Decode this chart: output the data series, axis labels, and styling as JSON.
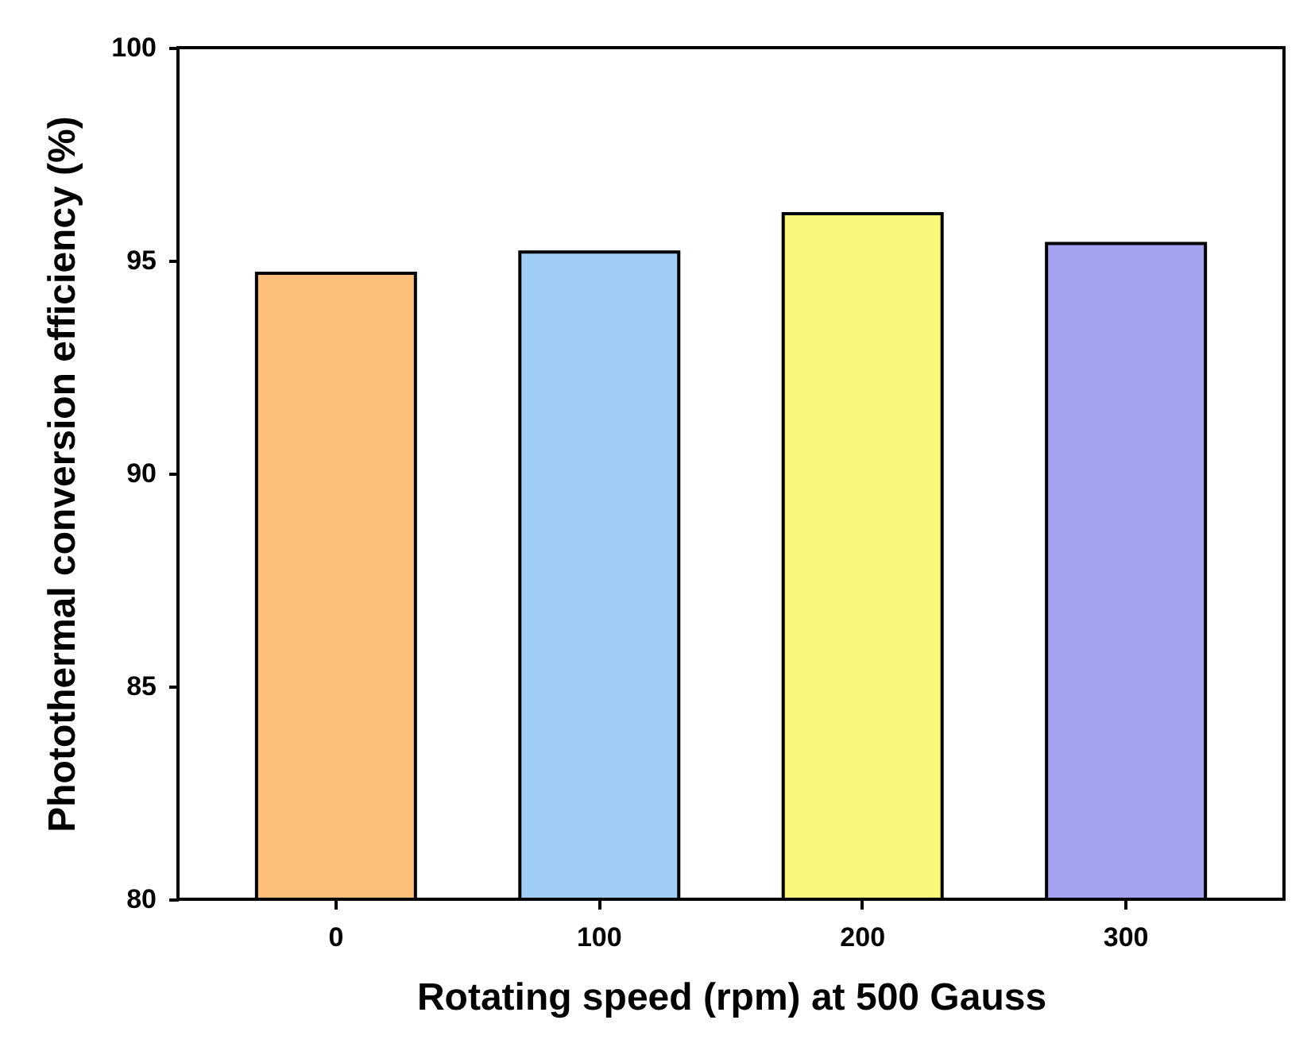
{
  "chart_data": {
    "type": "bar",
    "xlabel": "Rotating speed (rpm) at 500 Gauss",
    "ylabel": "Photothermal conversion efficiency (%)",
    "categories": [
      "0",
      "100",
      "200",
      "300"
    ],
    "values": [
      94.7,
      95.2,
      96.1,
      95.4
    ],
    "colors": [
      "#fdbf7a",
      "#a0cdf5",
      "#f9f77c",
      "#a3a3f2"
    ],
    "ylim": [
      80,
      100
    ],
    "yticks": [
      80,
      85,
      90,
      95,
      100
    ],
    "grid": false,
    "legend": false
  }
}
